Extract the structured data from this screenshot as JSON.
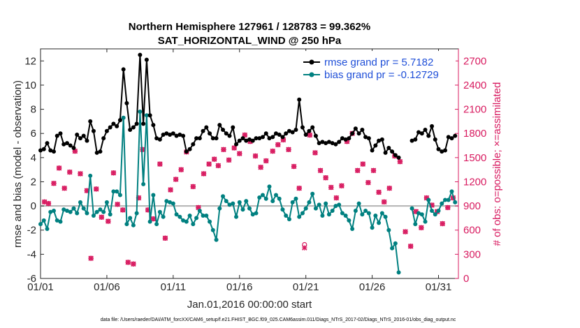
{
  "chart_data": {
    "type": "line",
    "title": "Northern Hemisphere 127961 / 128783 = 99.362%",
    "subtitle": "SAT_HORIZONTAL_WIND @ 250 hPa",
    "xlabel": "Jan.01,2016 00:00:00 start",
    "ylabel": "rmse and bias (model - observation)",
    "y2label": "# of obs: o=possible; ×=assimilated",
    "footer": "data file: /Users/raeder/DAI/ATM_forcXX/CAM6_setup/f.e21.FHIST_BGC.f09_025.CAM6assim.011/Diags_NTrS_2017-02/Diags_NTrS_2016-01/obs_diag_output.nc",
    "xlim": [
      0,
      31.5
    ],
    "ylim": [
      -6,
      13
    ],
    "y2lim": [
      0,
      2850
    ],
    "x_ticks": [
      0,
      5,
      10,
      15,
      20,
      25,
      30
    ],
    "x_tick_labels": [
      "01/01",
      "01/06",
      "01/11",
      "01/16",
      "01/21",
      "01/26",
      "01/31"
    ],
    "y_ticks": [
      -6,
      -4,
      -2,
      0,
      2,
      4,
      6,
      8,
      10,
      12
    ],
    "y_tick_labels": [
      "-6",
      "-4",
      "-2",
      "0",
      "2",
      "4",
      "6",
      "8",
      "10",
      "12"
    ],
    "y2_ticks": [
      0,
      300,
      600,
      900,
      1200,
      1500,
      1800,
      2100,
      2400,
      2700
    ],
    "y2_tick_labels": [
      "0",
      "300",
      "600",
      "900",
      "1200",
      "1500",
      "1800",
      "2100",
      "2400",
      "2700"
    ],
    "legend_position": "top-right",
    "series": [
      {
        "name": "rmse grand pr = 5.7182",
        "color": "#000000",
        "values": [
          4.6,
          4.7,
          5.2,
          4.6,
          4.5,
          5.8,
          6.0,
          5.1,
          5.2,
          5.0,
          4.8,
          5.9,
          5.6,
          5.8,
          5.4,
          7.0,
          6.2,
          4.4,
          4.5,
          5.6,
          6.2,
          6.5,
          6.8,
          6.6,
          7.1,
          11.3,
          8.5,
          6.3,
          6.5,
          6.8,
          12.5,
          6.8,
          12.1,
          7.5,
          6.7,
          5.6,
          5.5,
          5.9,
          6.0,
          5.9,
          6.0,
          5.8,
          5.9,
          5.8,
          4.5,
          4.7,
          5.1,
          5.6,
          5.6,
          6.2,
          6.5,
          6.0,
          5.6,
          5.6,
          6.7,
          6.3,
          6.0,
          5.8,
          6.5,
          5.1,
          5.4,
          5.6,
          5.4,
          5.5,
          5.4,
          5.6,
          5.6,
          5.7,
          6.0,
          5.6,
          5.7,
          6.0,
          5.9,
          5.7,
          6.0,
          6.2,
          6.1,
          6.3,
          8.8,
          6.5,
          5.9,
          6.2,
          6.5,
          5.8,
          5.2,
          5.3,
          5.2,
          5.3,
          5.2,
          5.1,
          5.3,
          5.6,
          5.5,
          5.6,
          6.0,
          6.4,
          6.0,
          6.3,
          5.7,
          5.6,
          4.6,
          5.0,
          5.4,
          5.5,
          4.4,
          4.8,
          4.5,
          4.2,
          4.0,
          null,
          null,
          null,
          5.4,
          5.5,
          6.1,
          6.0,
          6.3,
          5.8,
          6.6,
          5.5,
          4.7,
          4.5,
          4.6,
          5.7,
          5.6,
          5.8
        ],
        "__note": "values sampled every 0.25 day from x=0 to x=31.25"
      },
      {
        "name": "bias grand pr = -0.12729",
        "color": "#008080",
        "values": [
          -1.5,
          -1.2,
          -1.9,
          -0.5,
          -0.4,
          -1.2,
          -1.3,
          -0.3,
          -0.4,
          -0.5,
          -0.2,
          -0.6,
          0.3,
          -0.2,
          -0.6,
          2.5,
          -0.8,
          -0.5,
          -0.3,
          -0.5,
          0.3,
          -0.7,
          1.2,
          1.2,
          0.9,
          7.3,
          -1.5,
          -1.0,
          -1.6,
          -0.6,
          7.8,
          1.8,
          7.5,
          -1.3,
          0.9,
          -1.5,
          -0.5,
          -0.9,
          0.4,
          0.3,
          0.2,
          -0.7,
          -0.9,
          -1.2,
          -1.3,
          -0.8,
          -1.5,
          -1.0,
          -0.4,
          -0.8,
          -0.8,
          -1.3,
          -2.0,
          -2.8,
          -0.2,
          0.8,
          0.4,
          0.1,
          0.2,
          -0.9,
          0.3,
          -0.3,
          0.4,
          -0.2,
          -0.7,
          -0.6,
          0.7,
          0.9,
          0.6,
          1.6,
          0.4,
          0.9,
          0.6,
          -0.3,
          -0.8,
          -1.1,
          0.3,
          0.6,
          -0.9,
          -0.6,
          -0.2,
          0.3,
          1.0,
          -0.2,
          0.1,
          -0.8,
          0.2,
          -0.7,
          -0.4,
          0.0,
          0.1,
          -0.6,
          -0.8,
          -1.2,
          -1.9,
          -0.4,
          0.2,
          -0.7,
          -0.4,
          -0.6,
          -1.8,
          -0.8,
          -1.4,
          -0.6,
          -0.9,
          -2.0,
          -3.5,
          -3.1,
          -5.5,
          null,
          null,
          null,
          -0.2,
          -1.5,
          -0.6,
          -0.7,
          -1.3,
          0.5,
          -0.4,
          -0.7,
          -0.4,
          0.2,
          0.5,
          0.5,
          1.2,
          0.3
        ],
        "__note": "values sampled every 0.25 day from x=0 to x=31.25"
      }
    ],
    "obs_possible_days": [
      0.3,
      0.6,
      1.0,
      1.4,
      1.8,
      2.2,
      2.6,
      3.0,
      3.5,
      3.8,
      4.2,
      4.6,
      5.1,
      5.5,
      5.8,
      6.2,
      6.6,
      7.0,
      7.4,
      7.7,
      8.1,
      8.5,
      9.0,
      9.4,
      9.8,
      10.2,
      10.6,
      11.0,
      11.5,
      11.9,
      12.3,
      12.7,
      13.1,
      13.4,
      13.8,
      14.2,
      14.6,
      15.0,
      15.4,
      15.8,
      16.2,
      16.6,
      17.0,
      17.5,
      17.9,
      18.3,
      18.7,
      19.1,
      19.5,
      19.9,
      20.3,
      20.7,
      21.1,
      21.5,
      21.9,
      22.3,
      22.7,
      23.1,
      23.5,
      23.9,
      24.3,
      24.7,
      25.1,
      25.5,
      25.9,
      26.3,
      26.7,
      27.1,
      27.5,
      27.9,
      28.3,
      28.7,
      29.1,
      29.5,
      29.9,
      30.3,
      30.7,
      31.1
    ],
    "obs_possible_counts": [
      950,
      930,
      1180,
      1370,
      1120,
      1320,
      1580,
      1300,
      1090,
      250,
      1110,
      760,
      710,
      1310,
      920,
      850,
      200,
      180,
      1000,
      1600,
      850,
      740,
      1420,
      500,
      1100,
      1230,
      1350,
      1570,
      1140,
      880,
      1300,
      1420,
      1480,
      1400,
      1600,
      1470,
      1620,
      1550,
      1780,
      1700,
      1520,
      1380,
      1460,
      1580,
      1660,
      1720,
      1600,
      1390,
      1120,
      420,
      1780,
      1560,
      1340,
      1250,
      1130,
      1000,
      1150,
      1700,
      1800,
      1340,
      1420,
      1190,
      1340,
      1070,
      950,
      1120,
      1520,
      1450,
      580,
      400,
      830,
      630,
      1000,
      910,
      830,
      680,
      880,
      1000
    ],
    "obs_assimilated_days": [
      0.3,
      0.6,
      1.0,
      1.4,
      1.8,
      2.2,
      2.6,
      3.0,
      3.5,
      3.8,
      4.2,
      4.6,
      5.1,
      5.5,
      5.8,
      6.2,
      6.6,
      7.0,
      7.4,
      7.7,
      8.1,
      8.5,
      9.0,
      9.4,
      9.8,
      10.2,
      10.6,
      11.0,
      11.5,
      11.9,
      12.3,
      12.7,
      13.1,
      13.4,
      13.8,
      14.2,
      14.6,
      15.0,
      15.4,
      15.8,
      16.2,
      16.6,
      17.0,
      17.5,
      17.9,
      18.3,
      18.7,
      19.1,
      19.5,
      19.9,
      20.3,
      20.7,
      21.1,
      21.5,
      21.9,
      22.3,
      22.7,
      23.1,
      23.5,
      23.9,
      24.3,
      24.7,
      25.1,
      25.5,
      25.9,
      26.3,
      26.7,
      27.1,
      27.5,
      27.9,
      28.3,
      28.7,
      29.1,
      29.5,
      29.9,
      30.3,
      30.7,
      31.1
    ],
    "obs_assimilated_counts": [
      950,
      930,
      1180,
      1370,
      1120,
      1320,
      1580,
      1300,
      1090,
      250,
      1110,
      760,
      710,
      1310,
      920,
      850,
      200,
      180,
      1000,
      1600,
      850,
      740,
      1420,
      500,
      1100,
      1230,
      1350,
      1570,
      1140,
      880,
      1300,
      1420,
      1480,
      1400,
      1600,
      1470,
      1620,
      1550,
      1780,
      1700,
      1520,
      1380,
      1460,
      1580,
      1660,
      1720,
      1600,
      1390,
      1120,
      380,
      1780,
      1560,
      1340,
      1250,
      1130,
      1000,
      1150,
      1700,
      1800,
      1340,
      1420,
      1190,
      1340,
      1070,
      950,
      1120,
      1520,
      1450,
      580,
      400,
      830,
      630,
      1000,
      910,
      830,
      680,
      880,
      1000
    ]
  },
  "colors": {
    "rmse": "#000000",
    "bias": "#008080",
    "obs": "#d81b60",
    "legend_text": "#1f4fd8",
    "zero_line": "#b3b3b3"
  }
}
